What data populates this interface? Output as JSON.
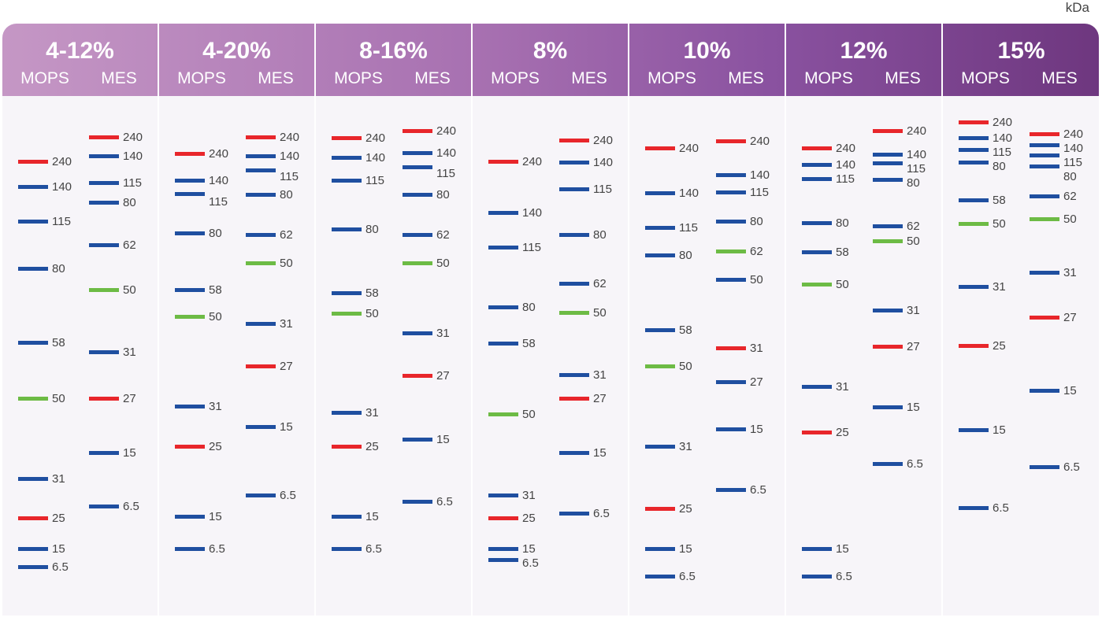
{
  "unit_label": "kDa",
  "colors": {
    "red": "#e8262b",
    "blue": "#1f4fa0",
    "green": "#6dbb45"
  },
  "gels": [
    {
      "name": "4-12%",
      "buffers": [
        {
          "name": "MOPS",
          "bands": [
            [
              "240",
              "red"
            ],
            [
              "140",
              "blue"
            ],
            [
              "115",
              "blue"
            ],
            [
              "80",
              "blue"
            ],
            [
              "58",
              "blue"
            ],
            [
              "50",
              "green"
            ],
            [
              "31",
              "blue"
            ],
            [
              "25",
              "red"
            ],
            [
              "15",
              "blue"
            ],
            [
              "6.5",
              "blue"
            ]
          ]
        },
        {
          "name": "MES",
          "bands": [
            [
              "240",
              "red"
            ],
            [
              "140",
              "blue"
            ],
            [
              "115",
              "blue"
            ],
            [
              "80",
              "blue"
            ],
            [
              "62",
              "blue"
            ],
            [
              "50",
              "green"
            ],
            [
              "31",
              "blue"
            ],
            [
              "27",
              "red"
            ],
            [
              "15",
              "blue"
            ],
            [
              "6.5",
              "blue"
            ]
          ]
        }
      ]
    },
    {
      "name": "4-20%",
      "buffers": [
        {
          "name": "MOPS",
          "bands": [
            [
              "240",
              "red"
            ],
            [
              "140",
              "blue"
            ],
            [
              "115",
              "blue"
            ],
            [
              "80",
              "blue"
            ],
            [
              "58",
              "blue"
            ],
            [
              "50",
              "green"
            ],
            [
              "31",
              "blue"
            ],
            [
              "25",
              "red"
            ],
            [
              "15",
              "blue"
            ],
            [
              "6.5",
              "blue"
            ]
          ]
        },
        {
          "name": "MES",
          "bands": [
            [
              "240",
              "red"
            ],
            [
              "140",
              "blue"
            ],
            [
              "115",
              "blue"
            ],
            [
              "80",
              "blue"
            ],
            [
              "62",
              "blue"
            ],
            [
              "50",
              "green"
            ],
            [
              "31",
              "blue"
            ],
            [
              "27",
              "red"
            ],
            [
              "15",
              "blue"
            ],
            [
              "6.5",
              "blue"
            ]
          ]
        }
      ]
    },
    {
      "name": "8-16%",
      "buffers": [
        {
          "name": "MOPS",
          "bands": [
            [
              "240",
              "red"
            ],
            [
              "140",
              "blue"
            ],
            [
              "115",
              "blue"
            ],
            [
              "80",
              "blue"
            ],
            [
              "58",
              "blue"
            ],
            [
              "50",
              "green"
            ],
            [
              "31",
              "blue"
            ],
            [
              "25",
              "red"
            ],
            [
              "15",
              "blue"
            ],
            [
              "6.5",
              "blue"
            ]
          ]
        },
        {
          "name": "MES",
          "bands": [
            [
              "240",
              "red"
            ],
            [
              "140",
              "blue"
            ],
            [
              "115",
              "blue"
            ],
            [
              "80",
              "blue"
            ],
            [
              "62",
              "blue"
            ],
            [
              "50",
              "green"
            ],
            [
              "31",
              "blue"
            ],
            [
              "27",
              "red"
            ],
            [
              "15",
              "blue"
            ],
            [
              "6.5",
              "blue"
            ]
          ]
        }
      ]
    },
    {
      "name": "8%",
      "buffers": [
        {
          "name": "MOPS",
          "bands": [
            [
              "240",
              "red"
            ],
            [
              "140",
              "blue"
            ],
            [
              "115",
              "blue"
            ],
            [
              "80",
              "blue"
            ],
            [
              "58",
              "blue"
            ],
            [
              "50",
              "green"
            ],
            [
              "31",
              "blue"
            ],
            [
              "25",
              "red"
            ],
            [
              "15",
              "blue"
            ],
            [
              "6.5",
              "blue"
            ]
          ]
        },
        {
          "name": "MES",
          "bands": [
            [
              "240",
              "red"
            ],
            [
              "140",
              "blue"
            ],
            [
              "115",
              "blue"
            ],
            [
              "80",
              "blue"
            ],
            [
              "62",
              "blue"
            ],
            [
              "50",
              "green"
            ],
            [
              "31",
              "blue"
            ],
            [
              "27",
              "red"
            ],
            [
              "15",
              "blue"
            ],
            [
              "6.5",
              "blue"
            ]
          ]
        }
      ]
    },
    {
      "name": "10%",
      "buffers": [
        {
          "name": "MOPS",
          "bands": [
            [
              "240",
              "red"
            ],
            [
              "140",
              "blue"
            ],
            [
              "115",
              "blue"
            ],
            [
              "80",
              "blue"
            ],
            [
              "58",
              "blue"
            ],
            [
              "50",
              "green"
            ],
            [
              "31",
              "blue"
            ],
            [
              "25",
              "red"
            ],
            [
              "15",
              "blue"
            ],
            [
              "6.5",
              "blue"
            ]
          ]
        },
        {
          "name": "MES",
          "bands": [
            [
              "240",
              "red"
            ],
            [
              "140",
              "blue"
            ],
            [
              "115",
              "blue"
            ],
            [
              "80",
              "blue"
            ],
            [
              "62",
              "green"
            ],
            [
              "50",
              "blue"
            ],
            [
              "31",
              "red"
            ],
            [
              "27",
              "blue"
            ],
            [
              "15",
              "blue"
            ],
            [
              "6.5",
              "blue"
            ]
          ]
        }
      ]
    },
    {
      "name": "12%",
      "buffers": [
        {
          "name": "MOPS",
          "bands": [
            [
              "240",
              "red"
            ],
            [
              "140",
              "blue"
            ],
            [
              "115",
              "blue"
            ],
            [
              "80",
              "blue"
            ],
            [
              "58",
              "blue"
            ],
            [
              "50",
              "green"
            ],
            [
              "31",
              "blue"
            ],
            [
              "25",
              "red"
            ],
            [
              "15",
              "blue"
            ],
            [
              "6.5",
              "blue"
            ]
          ]
        },
        {
          "name": "MES",
          "bands": [
            [
              "240",
              "red"
            ],
            [
              "140",
              "blue"
            ],
            [
              "115",
              "blue"
            ],
            [
              "80",
              "blue"
            ],
            [
              "62",
              "blue"
            ],
            [
              "50",
              "green"
            ],
            [
              "31",
              "blue"
            ],
            [
              "27",
              "red"
            ],
            [
              "15",
              "blue"
            ],
            [
              "6.5",
              "blue"
            ]
          ]
        }
      ]
    },
    {
      "name": "15%",
      "buffers": [
        {
          "name": "MOPS",
          "bands": [
            [
              "240",
              "red"
            ],
            [
              "140",
              "blue"
            ],
            [
              "115",
              "blue"
            ],
            [
              "80",
              "blue"
            ],
            [
              "58",
              "blue"
            ],
            [
              "50",
              "green"
            ],
            [
              "31",
              "blue"
            ],
            [
              "25",
              "red"
            ],
            [
              "15",
              "blue"
            ],
            [
              "6.5",
              "blue"
            ]
          ]
        },
        {
          "name": "MES",
          "bands": [
            [
              "240",
              "red"
            ],
            [
              "140",
              "blue"
            ],
            [
              "115",
              "blue"
            ],
            [
              "80",
              "blue"
            ],
            [
              "62",
              "blue"
            ],
            [
              "50",
              "green"
            ],
            [
              "31",
              "blue"
            ],
            [
              "27",
              "red"
            ],
            [
              "15",
              "blue"
            ],
            [
              "6.5",
              "blue"
            ]
          ]
        }
      ]
    }
  ]
}
